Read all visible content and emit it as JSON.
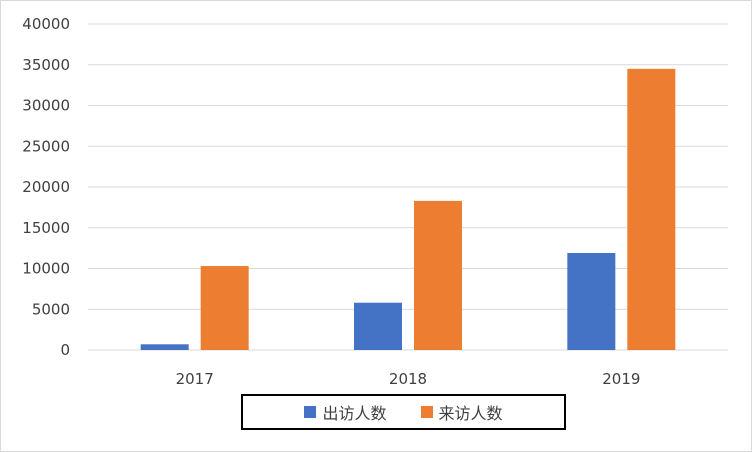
{
  "chart_data": {
    "type": "bar",
    "title": "",
    "xlabel": "",
    "ylabel": "",
    "categories": [
      "2017",
      "2018",
      "2019"
    ],
    "series": [
      {
        "name": "出访人数",
        "values": [
          700,
          5800,
          11900
        ],
        "color": "#4472C4"
      },
      {
        "name": "来访人数",
        "values": [
          10300,
          18300,
          34500
        ],
        "color": "#ED7D31"
      }
    ],
    "ylim": [
      0,
      40000
    ],
    "yticks": [
      0,
      5000,
      10000,
      15000,
      20000,
      25000,
      30000,
      35000,
      40000
    ],
    "grid": true,
    "legend_position": "bottom"
  }
}
